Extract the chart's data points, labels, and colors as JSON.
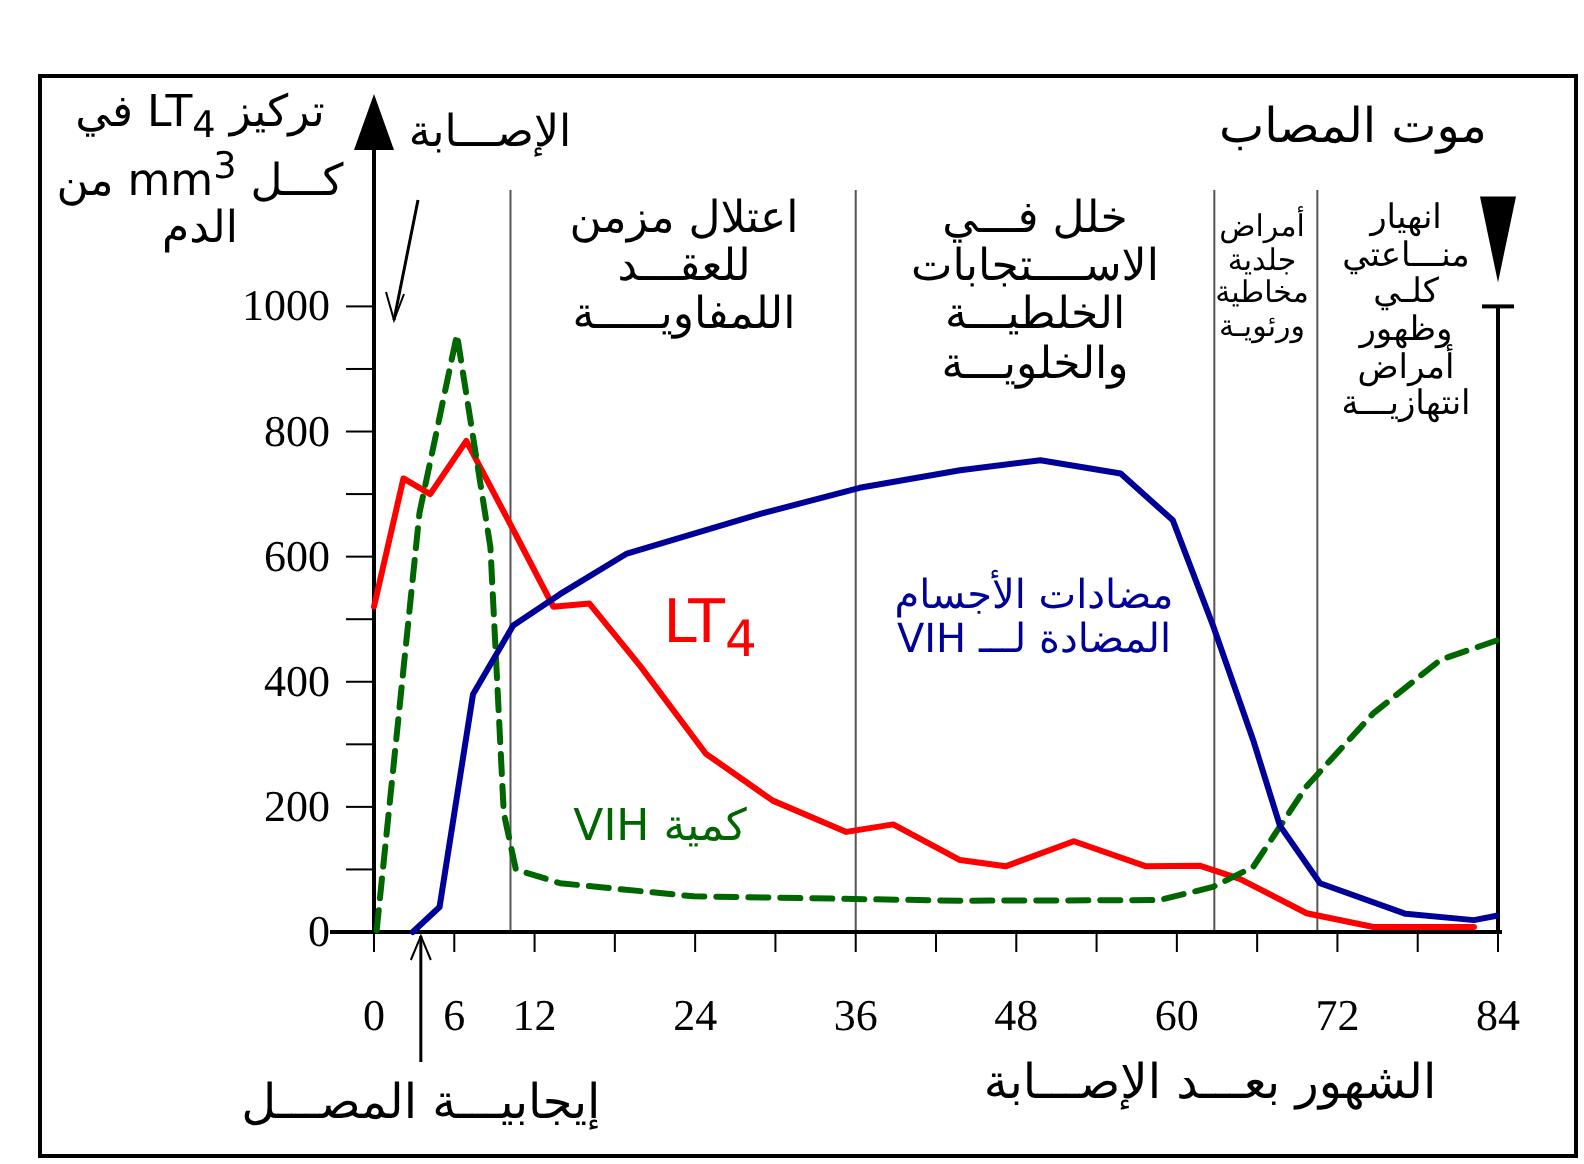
{
  "chart_data": {
    "type": "line",
    "xlabel": "الشهور بعـــد الإصـــابة",
    "ylabel": "تركيز LT$_{4}$ في كـــل mm$^{3}$ من الدم",
    "xlim": [
      0,
      84
    ],
    "ylim": [
      0,
      1250
    ],
    "xticks": [
      0,
      6,
      12,
      {
        "value": 18,
        "label": null
      },
      24,
      {
        "value": 30,
        "label": null
      },
      36,
      {
        "value": 42,
        "label": null
      },
      48,
      {
        "value": 54,
        "label": null
      },
      60,
      {
        "value": 66,
        "label": null
      },
      72,
      {
        "value": 78,
        "label": null
      },
      84
    ],
    "yticks": [
      0,
      {
        "value": 100,
        "label": null
      },
      200,
      {
        "value": 300,
        "label": null
      },
      400,
      {
        "value": 500,
        "label": null
      },
      600,
      {
        "value": 700,
        "label": null
      },
      800,
      {
        "value": 900,
        "label": null
      },
      1000
    ],
    "grid": false,
    "series": [
      {
        "name": "LT$_{4}$",
        "color": "#ff0000",
        "line_style": "solid",
        "x": [
          0,
          2.2,
          4.2,
          6.9,
          10.6,
          13.4,
          16.1,
          19.9,
          24.8,
          29.8,
          35.3,
          38.8,
          43.8,
          47.2,
          52.3,
          57.7,
          61.7,
          64.7,
          69.7,
          74.7,
          82.2
        ],
        "values": [
          520,
          725,
          700,
          785,
          635,
          520,
          525,
          425,
          285,
          210,
          160,
          172,
          115,
          105,
          145,
          105,
          106,
          85,
          30,
          8,
          8
        ]
      },
      {
        "name": "كمية VIH",
        "color": "#006600",
        "line_style": "dashed",
        "x": [
          0.2,
          3.4,
          6.2,
          8.7,
          9.7,
          10.6,
          13.9,
          23.9,
          43.8,
          58.7,
          62.7,
          65.7,
          69.7,
          74.7,
          79.7,
          83.9
        ],
        "values": [
          3,
          670,
          955,
          615,
          190,
          100,
          78,
          57,
          50,
          51,
          72,
          104,
          233,
          350,
          435,
          466
        ]
      },
      {
        "name": "مضادات الأجسام المضادة لـــ VIH",
        "color": "#000099",
        "line_style": "solid",
        "x": [
          2.9,
          4.9,
          7.4,
          10.4,
          13.9,
          18.9,
          28.8,
          36.3,
          43.8,
          49.8,
          55.8,
          59.7,
          62.7,
          65.7,
          67.7,
          70.7,
          77.1,
          82.2,
          83.9
        ],
        "values": [
          0,
          40,
          380,
          490,
          540,
          605,
          668,
          710,
          738,
          754,
          733,
          658,
          490,
          307,
          170,
          78,
          29,
          19,
          26
        ]
      }
    ],
    "ref_lines": [
      {
        "axis": "x",
        "value": 10.2,
        "color": "#555555"
      },
      {
        "axis": "x",
        "value": 36,
        "color": "#555555"
      },
      {
        "axis": "x",
        "value": 62.8,
        "color": "#555555"
      },
      {
        "axis": "x",
        "value": 70.5,
        "color": "#555555"
      },
      {
        "axis": "x",
        "value": 84,
        "label": "موت المصاب",
        "color": "#000000"
      }
    ],
    "annotations": [
      "اعتلال مزمن للعقـــد اللمفاويـــــة",
      "خلل فـــي الاســــتجابات الخلطيـــة والخلويـــة",
      "أمراض جلدية مخاطية ورئويـة",
      "انهيار منـــاعتي كلـي وظهور أمراض انتهازيـــة",
      "الإصـــابة",
      {
        "text": "إيجابيـــة المصـــل",
        "x": 3.5,
        "y": 0
      }
    ]
  }
}
